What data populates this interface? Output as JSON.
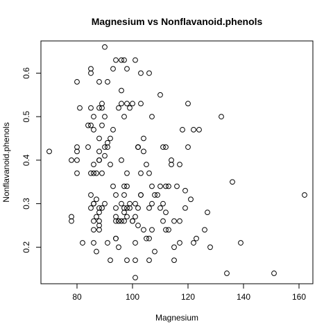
{
  "chart_data": {
    "type": "scatter",
    "title": "Magnesium vs Nonflavanoid.phenols",
    "xlabel": "Magnesium",
    "ylabel": "Nonflavanoid.phenols",
    "xlim": [
      67,
      165
    ],
    "ylim": [
      0.116,
      0.674
    ],
    "xticks": [
      80,
      100,
      120,
      140,
      160
    ],
    "xtick_labels": [
      "80",
      "100",
      "120",
      "140",
      "160"
    ],
    "yticks": [
      0.2,
      0.3,
      0.4,
      0.5,
      0.6
    ],
    "ytick_labels": [
      "0.2",
      "0.3",
      "0.4",
      "0.5",
      "0.6"
    ],
    "grid": false,
    "legend": "none",
    "points": [
      [
        70,
        0.42
      ],
      [
        78,
        0.27
      ],
      [
        78,
        0.26
      ],
      [
        78,
        0.4
      ],
      [
        80,
        0.58
      ],
      [
        80,
        0.43
      ],
      [
        80,
        0.42
      ],
      [
        80,
        0.4
      ],
      [
        80,
        0.37
      ],
      [
        81,
        0.52
      ],
      [
        82,
        0.21
      ],
      [
        84,
        0.48
      ],
      [
        84,
        0.43
      ],
      [
        85,
        0.61
      ],
      [
        85,
        0.6
      ],
      [
        85,
        0.52
      ],
      [
        85,
        0.48
      ],
      [
        85,
        0.37
      ],
      [
        85,
        0.32
      ],
      [
        85,
        0.29
      ],
      [
        86,
        0.5
      ],
      [
        86,
        0.47
      ],
      [
        86,
        0.3
      ],
      [
        86,
        0.3
      ],
      [
        86,
        0.26
      ],
      [
        86,
        0.24
      ],
      [
        86,
        0.21
      ],
      [
        86,
        0.39
      ],
      [
        86,
        0.37
      ],
      [
        87,
        0.27
      ],
      [
        87,
        0.19
      ],
      [
        87,
        0.37
      ],
      [
        87,
        0.31
      ],
      [
        88,
        0.58
      ],
      [
        88,
        0.52
      ],
      [
        88,
        0.45
      ],
      [
        88,
        0.42
      ],
      [
        88,
        0.4
      ],
      [
        88,
        0.29
      ],
      [
        88,
        0.28
      ],
      [
        88,
        0.26
      ],
      [
        88,
        0.25
      ],
      [
        88,
        0.24
      ],
      [
        88,
        0.4
      ],
      [
        89,
        0.53
      ],
      [
        89,
        0.52
      ],
      [
        89,
        0.48
      ],
      [
        89,
        0.37
      ],
      [
        89,
        0.29
      ],
      [
        90,
        0.66
      ],
      [
        90,
        0.5
      ],
      [
        90,
        0.43
      ],
      [
        90,
        0.41
      ],
      [
        90,
        0.3
      ],
      [
        91,
        0.58
      ],
      [
        91,
        0.44
      ],
      [
        91,
        0.43
      ],
      [
        91,
        0.21
      ],
      [
        92,
        0.45
      ],
      [
        92,
        0.39
      ],
      [
        92,
        0.17
      ],
      [
        93,
        0.61
      ],
      [
        93,
        0.34
      ],
      [
        93,
        0.47
      ],
      [
        94,
        0.63
      ],
      [
        94,
        0.29
      ],
      [
        94,
        0.27
      ],
      [
        94,
        0.26
      ],
      [
        94,
        0.22
      ],
      [
        94,
        0.22
      ],
      [
        94,
        0.32
      ],
      [
        95,
        0.52
      ],
      [
        95,
        0.26
      ],
      [
        95,
        0.26
      ],
      [
        95,
        0.2
      ],
      [
        96,
        0.63
      ],
      [
        96,
        0.56
      ],
      [
        96,
        0.53
      ],
      [
        96,
        0.4
      ],
      [
        96,
        0.3
      ],
      [
        96,
        0.26
      ],
      [
        97,
        0.63
      ],
      [
        97,
        0.5
      ],
      [
        97,
        0.34
      ],
      [
        97,
        0.29
      ],
      [
        97,
        0.28
      ],
      [
        97,
        0.26
      ],
      [
        97,
        0.32
      ],
      [
        98,
        0.61
      ],
      [
        98,
        0.53
      ],
      [
        98,
        0.34
      ],
      [
        98,
        0.29
      ],
      [
        98,
        0.27
      ],
      [
        98,
        0.17
      ],
      [
        98,
        0.37
      ],
      [
        99,
        0.52
      ],
      [
        99,
        0.29
      ],
      [
        99,
        0.3
      ],
      [
        100,
        0.26
      ],
      [
        100,
        0.26
      ],
      [
        100,
        0.53
      ],
      [
        101,
        0.63
      ],
      [
        101,
        0.3
      ],
      [
        101,
        0.27
      ],
      [
        101,
        0.21
      ],
      [
        101,
        0.17
      ],
      [
        101,
        0.13
      ],
      [
        102,
        0.43
      ],
      [
        102,
        0.43
      ],
      [
        102,
        0.43
      ],
      [
        102,
        0.29
      ],
      [
        102,
        0.25
      ],
      [
        103,
        0.6
      ],
      [
        103,
        0.53
      ],
      [
        103,
        0.37
      ],
      [
        103,
        0.32
      ],
      [
        103,
        0.32
      ],
      [
        104,
        0.45
      ],
      [
        104,
        0.42
      ],
      [
        104,
        0.24
      ],
      [
        105,
        0.39
      ],
      [
        105,
        0.22
      ],
      [
        106,
        0.6
      ],
      [
        106,
        0.37
      ],
      [
        106,
        0.29
      ],
      [
        106,
        0.22
      ],
      [
        106,
        0.17
      ],
      [
        107,
        0.5
      ],
      [
        107,
        0.3
      ],
      [
        107,
        0.24
      ],
      [
        107,
        0.34
      ],
      [
        108,
        0.19
      ],
      [
        108,
        0.32
      ],
      [
        109,
        0.32
      ],
      [
        110,
        0.55
      ],
      [
        110,
        0.34
      ],
      [
        110,
        0.29
      ],
      [
        111,
        0.43
      ],
      [
        111,
        0.3
      ],
      [
        111,
        0.26
      ],
      [
        112,
        0.43
      ],
      [
        112,
        0.34
      ],
      [
        112,
        0.28
      ],
      [
        112,
        0.24
      ],
      [
        113,
        0.34
      ],
      [
        113,
        0.24
      ],
      [
        114,
        0.4
      ],
      [
        114,
        0.39
      ],
      [
        115,
        0.26
      ],
      [
        115,
        0.2
      ],
      [
        115,
        0.17
      ],
      [
        116,
        0.34
      ],
      [
        117,
        0.39
      ],
      [
        117,
        0.26
      ],
      [
        117,
        0.21
      ],
      [
        118,
        0.47
      ],
      [
        119,
        0.33
      ],
      [
        119,
        0.29
      ],
      [
        120,
        0.53
      ],
      [
        120,
        0.43
      ],
      [
        121,
        0.31
      ],
      [
        122,
        0.47
      ],
      [
        122,
        0.21
      ],
      [
        123,
        0.22
      ],
      [
        124,
        0.47
      ],
      [
        126,
        0.24
      ],
      [
        127,
        0.28
      ],
      [
        128,
        0.2
      ],
      [
        132,
        0.5
      ],
      [
        134,
        0.14
      ],
      [
        136,
        0.35
      ],
      [
        139,
        0.21
      ],
      [
        151,
        0.14
      ],
      [
        162,
        0.32
      ]
    ]
  }
}
